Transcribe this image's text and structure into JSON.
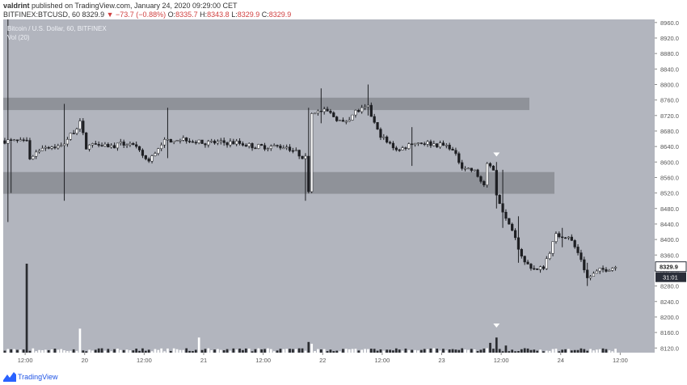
{
  "header": {
    "author": "valdrint",
    "published": "published on TradingView.com, January 24, 2020 09:29:00 CET",
    "symbol": "BITFINEX:BTCUSD, 60",
    "last": "8329.9",
    "change": "−73.7 (−0.88%)",
    "o_label": "O:",
    "o_val": "8335.7",
    "h_label": "H:",
    "h_val": "8343.8",
    "l_label": "L:",
    "l_val": "8329.9",
    "c_label": "C:",
    "c_val": "8329.9"
  },
  "legend": {
    "title": "Bitcoin / U.S. Dollar, 60, BITFINEX",
    "volume": "Vol (20)"
  },
  "footer": {
    "brand": "TradingView"
  },
  "colors": {
    "background": "#b2b5be",
    "zone": "#8f9299",
    "up_body": "#ffffff",
    "down_body": "#1d1e22",
    "wick": "#1d1e22",
    "axis_bg": "#ffffff",
    "price_tag": "#2a2e39",
    "marker": "#ffffff"
  },
  "chart_data": {
    "type": "candlestick",
    "title": "Bitcoin / U.S. Dollar, 60, BITFINEX",
    "yticks": [
      8120,
      8160,
      8200,
      8240,
      8280,
      8320,
      8360,
      8400,
      8440,
      8480,
      8520,
      8560,
      8600,
      8640,
      8680,
      8720,
      8760,
      8800,
      8840,
      8880,
      8920,
      8960
    ],
    "ylim": [
      8108,
      8968
    ],
    "xticks": [
      "12:00",
      "20",
      "12:00",
      "21",
      "12:00",
      "22",
      "12:00",
      "23",
      "12:00",
      "24",
      "12:00"
    ],
    "xlim": [
      0,
      208
    ],
    "xtick_positions": [
      7,
      26,
      45,
      64,
      83,
      102,
      121,
      140,
      159,
      178,
      197
    ],
    "zones": [
      {
        "low": 8734,
        "high": 8766,
        "x_end": 168
      },
      {
        "low": 8518,
        "high": 8574,
        "x_end": 176
      }
    ],
    "last_price": "8329.9",
    "countdown": "31:01",
    "markers": [
      {
        "x": 157,
        "price": 8612,
        "panel": "price"
      },
      {
        "x": 157,
        "panel": "volume"
      }
    ],
    "anchors": [
      {
        "x": 0,
        "price": 8655
      },
      {
        "x": 7,
        "price": 8650
      },
      {
        "x": 8,
        "price": 8610
      },
      {
        "x": 12,
        "price": 8640
      },
      {
        "x": 18,
        "price": 8640
      },
      {
        "x": 24,
        "price": 8700
      },
      {
        "x": 26,
        "price": 8640
      },
      {
        "x": 30,
        "price": 8650
      },
      {
        "x": 34,
        "price": 8640
      },
      {
        "x": 40,
        "price": 8650
      },
      {
        "x": 46,
        "price": 8600
      },
      {
        "x": 50,
        "price": 8650
      },
      {
        "x": 54,
        "price": 8660
      },
      {
        "x": 58,
        "price": 8660
      },
      {
        "x": 62,
        "price": 8650
      },
      {
        "x": 66,
        "price": 8650
      },
      {
        "x": 70,
        "price": 8650
      },
      {
        "x": 74,
        "price": 8650
      },
      {
        "x": 80,
        "price": 8640
      },
      {
        "x": 84,
        "price": 8640
      },
      {
        "x": 90,
        "price": 8640
      },
      {
        "x": 96,
        "price": 8610
      },
      {
        "x": 97,
        "price": 8530
      },
      {
        "x": 98,
        "price": 8730
      },
      {
        "x": 103,
        "price": 8730
      },
      {
        "x": 108,
        "price": 8700
      },
      {
        "x": 112,
        "price": 8730
      },
      {
        "x": 116,
        "price": 8740
      },
      {
        "x": 119,
        "price": 8680
      },
      {
        "x": 122,
        "price": 8650
      },
      {
        "x": 126,
        "price": 8630
      },
      {
        "x": 130,
        "price": 8650
      },
      {
        "x": 134,
        "price": 8650
      },
      {
        "x": 138,
        "price": 8645
      },
      {
        "x": 142,
        "price": 8640
      },
      {
        "x": 146,
        "price": 8590
      },
      {
        "x": 150,
        "price": 8575
      },
      {
        "x": 153,
        "price": 8540
      },
      {
        "x": 154,
        "price": 8590
      },
      {
        "x": 156,
        "price": 8585
      },
      {
        "x": 157,
        "price": 8520
      },
      {
        "x": 160,
        "price": 8450
      },
      {
        "x": 163,
        "price": 8400
      },
      {
        "x": 166,
        "price": 8340
      },
      {
        "x": 170,
        "price": 8320
      },
      {
        "x": 172,
        "price": 8330
      },
      {
        "x": 174,
        "price": 8370
      },
      {
        "x": 176,
        "price": 8410
      },
      {
        "x": 180,
        "price": 8410
      },
      {
        "x": 184,
        "price": 8350
      },
      {
        "x": 186,
        "price": 8300
      },
      {
        "x": 190,
        "price": 8320
      },
      {
        "x": 195,
        "price": 8330
      }
    ],
    "spikes": [
      {
        "x": 1,
        "high": 8968,
        "low": 8445
      },
      {
        "x": 2,
        "high": 8660,
        "low": 8520
      },
      {
        "x": 19,
        "high": 8750,
        "low": 8500
      },
      {
        "x": 52,
        "high": 8740,
        "low": 8610
      },
      {
        "x": 96,
        "high": 8620,
        "low": 8500
      },
      {
        "x": 97,
        "high": 8740,
        "low": 8520
      },
      {
        "x": 101,
        "high": 8790,
        "low": 8700
      },
      {
        "x": 116,
        "high": 8800,
        "low": 8720
      },
      {
        "x": 130,
        "high": 8690,
        "low": 8590
      },
      {
        "x": 157,
        "high": 8600,
        "low": 8480
      },
      {
        "x": 159,
        "high": 8580,
        "low": 8430
      },
      {
        "x": 164,
        "high": 8460,
        "low": 8340
      },
      {
        "x": 178,
        "high": 8430,
        "low": 8380
      },
      {
        "x": 186,
        "high": 8340,
        "low": 8280
      }
    ],
    "volume_spikes": [
      {
        "x": 7,
        "v": 1.0
      },
      {
        "x": 24,
        "v": 0.27
      },
      {
        "x": 62,
        "v": 0.17
      },
      {
        "x": 97,
        "v": 0.12
      },
      {
        "x": 98,
        "v": 0.1
      },
      {
        "x": 155,
        "v": 0.11
      },
      {
        "x": 157,
        "v": 0.17
      },
      {
        "x": 160,
        "v": 0.08
      }
    ]
  }
}
